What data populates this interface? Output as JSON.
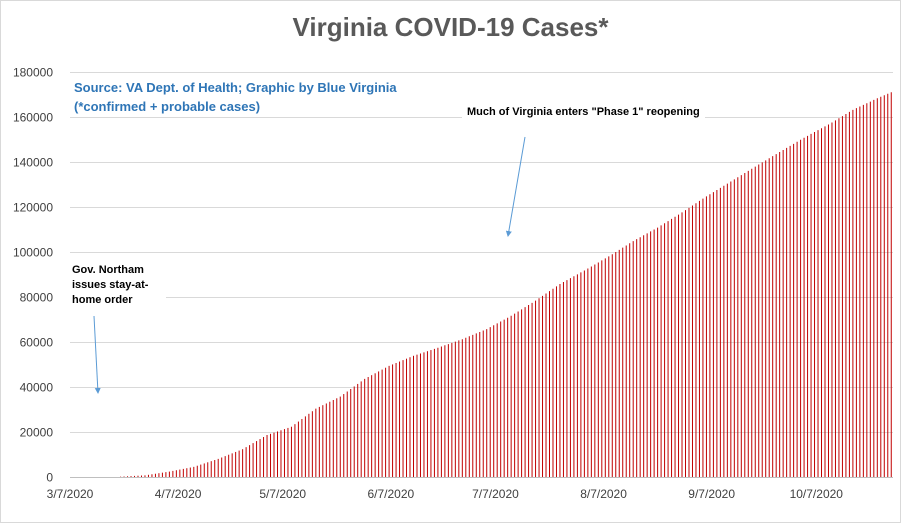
{
  "chart_data": {
    "type": "bar",
    "title": "Virginia COVID-19 Cases*",
    "subtitle_lines": [
      "Source: VA Dept. of Health; Graphic by Blue Virginia",
      "(*confirmed + probable cases)"
    ],
    "xlabel": "",
    "ylabel": "",
    "ylim": [
      0,
      180000
    ],
    "y_ticks": [
      "0",
      "20000",
      "40000",
      "60000",
      "80000",
      "100000",
      "120000",
      "140000",
      "160000",
      "180000"
    ],
    "x_tick_labels": [
      "3/7/2020",
      "4/7/2020",
      "5/7/2020",
      "6/7/2020",
      "7/7/2020",
      "8/7/2020",
      "9/7/2020",
      "10/7/2020"
    ],
    "grid": true,
    "bar_color": "#c00000",
    "x_start": "2020-03-07",
    "x_end": "2020-10-28",
    "series_points": [
      [
        "2020-03-07",
        2
      ],
      [
        "2020-03-14",
        41
      ],
      [
        "2020-03-21",
        152
      ],
      [
        "2020-03-28",
        739
      ],
      [
        "2020-04-04",
        2407
      ],
      [
        "2020-04-11",
        4509
      ],
      [
        "2020-04-18",
        8053
      ],
      [
        "2020-04-25",
        12366
      ],
      [
        "2020-05-02",
        18671
      ],
      [
        "2020-05-09",
        22342
      ],
      [
        "2020-05-16",
        30388
      ],
      [
        "2020-05-23",
        35749
      ],
      [
        "2020-05-30",
        43611
      ],
      [
        "2020-06-06",
        49397
      ],
      [
        "2020-06-13",
        53869
      ],
      [
        "2020-06-20",
        57443
      ],
      [
        "2020-06-27",
        61247
      ],
      [
        "2020-07-04",
        65748
      ],
      [
        "2020-07-11",
        71642
      ],
      [
        "2020-07-18",
        78375
      ],
      [
        "2020-07-25",
        85801
      ],
      [
        "2020-08-01",
        91782
      ],
      [
        "2020-08-08",
        98041
      ],
      [
        "2020-08-15",
        104838
      ],
      [
        "2020-08-22",
        110860
      ],
      [
        "2020-08-29",
        117592
      ],
      [
        "2020-09-05",
        124738
      ],
      [
        "2020-09-12",
        131350
      ],
      [
        "2020-09-19",
        137962
      ],
      [
        "2020-09-26",
        144433
      ],
      [
        "2020-10-03",
        150803
      ],
      [
        "2020-10-10",
        156649
      ],
      [
        "2020-10-17",
        163188
      ],
      [
        "2020-10-24",
        168316
      ],
      [
        "2020-10-28",
        171000
      ]
    ],
    "annotations": [
      {
        "text": "Much of Virginia enters \"Phase 1\" reopening"
      },
      {
        "text": "Gov. Northam issues stay-at-home order"
      }
    ]
  },
  "colors": {
    "bars": "#c00000",
    "arrow": "#5b9bd5",
    "source_text": "#2e75b6",
    "title": "#595959",
    "grid": "#d9d9d9"
  }
}
